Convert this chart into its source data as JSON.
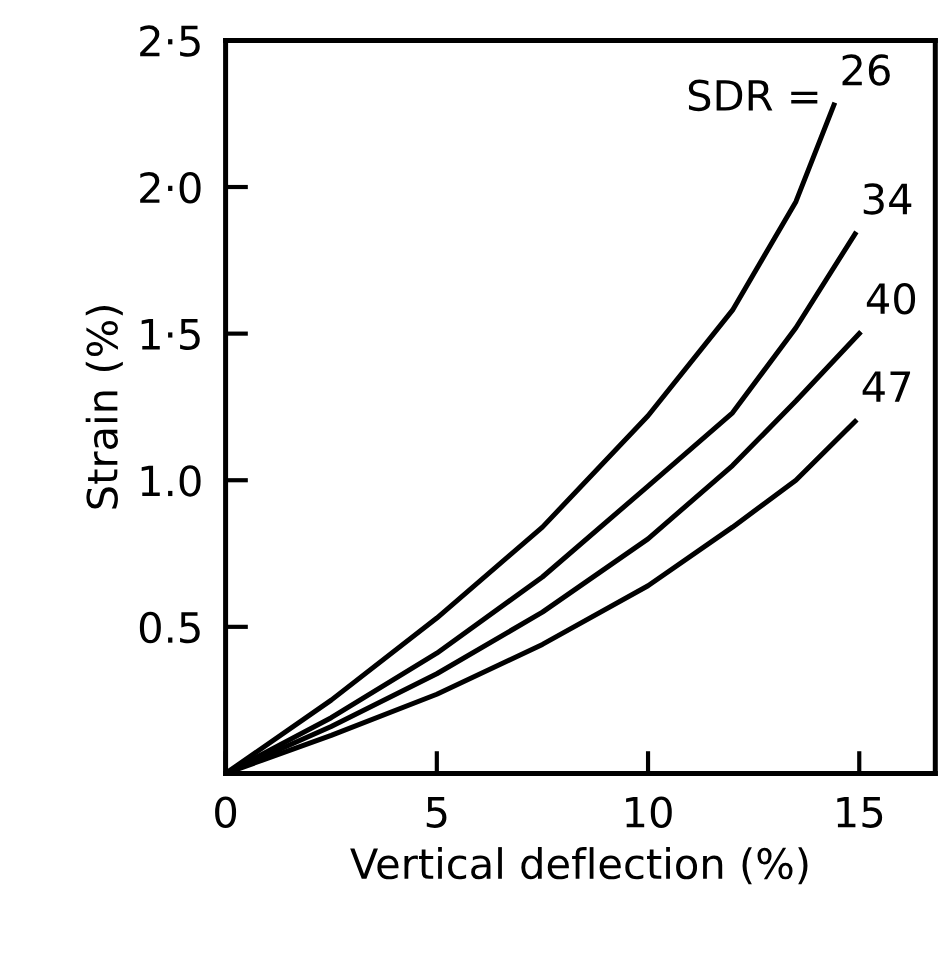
{
  "chart_data": {
    "type": "line",
    "xlabel": "Vertical deflection (%)",
    "ylabel": "Strain (%)",
    "xlim": [
      0,
      16.8
    ],
    "ylim": [
      0,
      2.5
    ],
    "xticks": [
      0,
      5,
      10,
      15
    ],
    "yticks": [
      {
        "value": 0.5,
        "label": "0.5"
      },
      {
        "value": 1.0,
        "label": "1.0"
      },
      {
        "value": 1.5,
        "label": "1·5"
      },
      {
        "value": 2.0,
        "label": "2·0"
      },
      {
        "value": 2.5,
        "label": "2·5"
      }
    ],
    "grid": false,
    "legend": false,
    "marker": "none",
    "line_style": "solid",
    "annotations": [
      "SDR ="
    ],
    "series": [
      {
        "name": "26",
        "color": "#000000",
        "x": [
          0,
          2.5,
          5,
          7.5,
          10,
          12,
          13.5,
          14.4
        ],
        "values": [
          0,
          0.25,
          0.53,
          0.84,
          1.22,
          1.58,
          1.95,
          2.28
        ]
      },
      {
        "name": "34",
        "color": "#000000",
        "x": [
          0,
          2.5,
          5,
          7.5,
          10,
          12,
          13.5,
          14.9
        ],
        "values": [
          0,
          0.19,
          0.41,
          0.67,
          0.98,
          1.23,
          1.52,
          1.84
        ]
      },
      {
        "name": "40",
        "color": "#000000",
        "x": [
          0,
          2.5,
          5,
          7.5,
          10,
          12,
          13.5,
          15
        ],
        "values": [
          0,
          0.16,
          0.34,
          0.55,
          0.8,
          1.05,
          1.27,
          1.5
        ]
      },
      {
        "name": "47",
        "color": "#000000",
        "x": [
          0,
          2.5,
          5,
          7.5,
          10,
          12,
          13.5,
          14.9
        ],
        "values": [
          0,
          0.13,
          0.27,
          0.44,
          0.64,
          0.84,
          1.0,
          1.2
        ]
      }
    ]
  }
}
